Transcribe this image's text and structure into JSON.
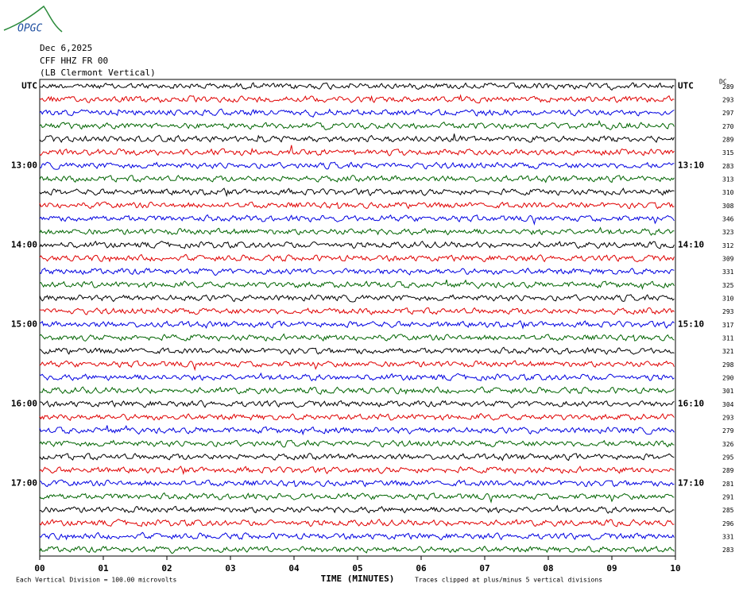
{
  "header": {
    "logo": "OPGC",
    "date": "Dec 6,2025",
    "station": "CFF HHZ FR 00",
    "location": "(LB  Clermont Vertical)",
    "dc_heading": "DC"
  },
  "left_labels": [
    "UTC",
    "13:00",
    "14:00",
    "15:00",
    "16:00",
    "17:00"
  ],
  "right_labels": [
    "UTC",
    "13:10",
    "14:10",
    "15:10",
    "16:10",
    "17:10"
  ],
  "dc_values": [
    289,
    293,
    297,
    270,
    289,
    315,
    283,
    313,
    310,
    308,
    346,
    323,
    312,
    309,
    331,
    325,
    310,
    293,
    317,
    311,
    321,
    298,
    290,
    301,
    304,
    293,
    279,
    326,
    295,
    289,
    281,
    291,
    285,
    296,
    331,
    283
  ],
  "trace_colors": [
    "#000000",
    "#e00000",
    "#0000e0",
    "#006400"
  ],
  "x_axis": {
    "label": "TIME (MINUTES)",
    "xlim": [
      0,
      10
    ],
    "xticks": [
      {
        "value": 0,
        "label": "00"
      },
      {
        "value": 1,
        "label": "01"
      },
      {
        "value": 2,
        "label": "02"
      },
      {
        "value": 3,
        "label": "03"
      },
      {
        "value": 4,
        "label": "04"
      },
      {
        "value": 5,
        "label": "05"
      },
      {
        "value": 6,
        "label": "06"
      },
      {
        "value": 7,
        "label": "07"
      },
      {
        "value": 8,
        "label": "08"
      },
      {
        "value": 9,
        "label": "09"
      },
      10
    ]
  },
  "footer": {
    "scale_note": "Each Vertical Division =  100.00 microvolts",
    "clip_note": "Traces clipped at plus/minus 5 vertical divisions"
  }
}
